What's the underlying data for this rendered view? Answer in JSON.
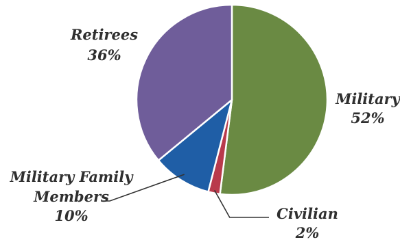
{
  "chart_data": {
    "type": "pie",
    "title": "",
    "slices": [
      {
        "label_lines": [
          "Military"
        ],
        "value": 52,
        "pct_label": "52%",
        "color": "#6a8a43"
      },
      {
        "label_lines": [
          "Civilian"
        ],
        "value": 2,
        "pct_label": "2%",
        "color": "#b93a4c"
      },
      {
        "label_lines": [
          "Military Family",
          "Members"
        ],
        "value": 10,
        "pct_label": "10%",
        "color": "#1f5ea6"
      },
      {
        "label_lines": [
          "Retirees"
        ],
        "value": 36,
        "pct_label": "36%",
        "color": "#6f5d9a"
      }
    ],
    "start_angle_deg": 0,
    "direction": "clockwise",
    "legend": "none",
    "labels": "outside, italic bold, percent below name"
  }
}
